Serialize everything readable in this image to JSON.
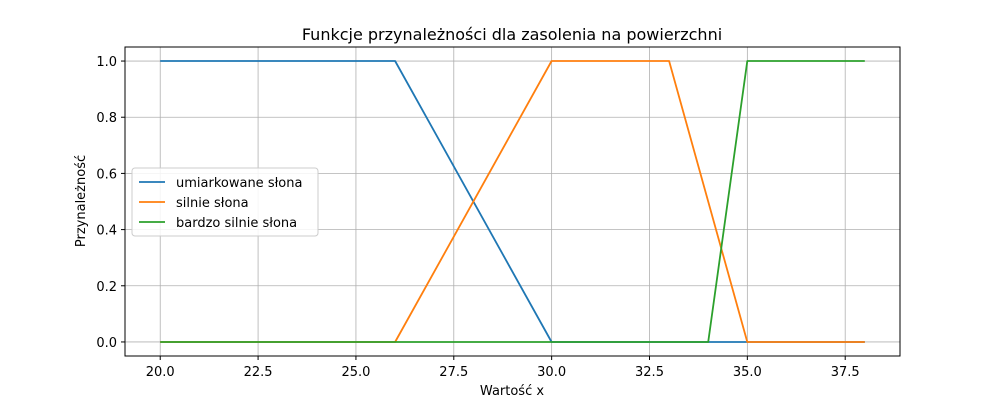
{
  "chart_data": {
    "type": "line",
    "title": "Funkcje przynależności dla zasolenia na powierzchni",
    "xlabel": "Wartość x",
    "ylabel": "Przynależność",
    "xlim": [
      19.1,
      38.9
    ],
    "ylim": [
      -0.05,
      1.05
    ],
    "xticks": [
      "20.0",
      "22.5",
      "25.0",
      "27.5",
      "30.0",
      "32.5",
      "35.0",
      "37.5"
    ],
    "yticks": [
      "0.0",
      "0.2",
      "0.4",
      "0.6",
      "0.8",
      "1.0"
    ],
    "grid": true,
    "legend_position": "center-left",
    "series": [
      {
        "name": "umiarkowane słona",
        "color": "#1f77b4",
        "x": [
          20,
          26,
          30,
          38
        ],
        "y": [
          1,
          1,
          0,
          0
        ]
      },
      {
        "name": "silnie słona",
        "color": "#ff7f0e",
        "x": [
          20,
          26,
          30,
          33,
          35,
          38
        ],
        "y": [
          0,
          0,
          1,
          1,
          0,
          0
        ]
      },
      {
        "name": "bardzo silnie słona",
        "color": "#2ca02c",
        "x": [
          20,
          34,
          35,
          38
        ],
        "y": [
          0,
          0,
          1,
          1
        ]
      }
    ]
  }
}
